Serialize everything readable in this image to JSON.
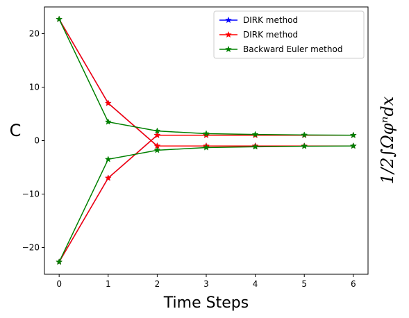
{
  "chart_data": {
    "type": "line",
    "x": [
      0,
      1,
      2,
      3,
      4,
      5,
      6
    ],
    "xlabel": "Time Steps",
    "ylabel": "C",
    "ylabel_right": "1/2∫Ωφⁿdx",
    "xlim": [
      -0.3,
      6.3
    ],
    "ylim": [
      -25,
      25
    ],
    "xticks": [
      0,
      1,
      2,
      3,
      4,
      5,
      6
    ],
    "yticks": [
      -20,
      -10,
      0,
      10,
      20
    ],
    "xtick_labels": [
      "0",
      "1",
      "2",
      "3",
      "4",
      "5",
      "6"
    ],
    "ytick_labels": [
      "−20",
      "−10",
      "0",
      "10",
      "20"
    ],
    "grid": false,
    "legend_position": "top-right",
    "marker": "star",
    "series": [
      {
        "name": "DIRK method",
        "color": "#0000ff",
        "group": "upper",
        "values": [
          22.7,
          7.0,
          -1.0,
          -1.0,
          -1.0,
          -1.0,
          -1.0
        ]
      },
      {
        "name": "DIRK method",
        "color": "#0000ff",
        "group": "lower",
        "values": [
          -22.7,
          -7.0,
          1.0,
          1.0,
          1.0,
          1.0,
          1.0
        ]
      },
      {
        "name": "DIRK method",
        "color": "#ff0000",
        "group": "upper",
        "values": [
          22.7,
          7.0,
          -1.0,
          -1.0,
          -1.0,
          -1.0,
          -1.0
        ]
      },
      {
        "name": "DIRK method",
        "color": "#ff0000",
        "group": "lower",
        "values": [
          -22.7,
          -7.0,
          1.0,
          1.0,
          1.0,
          1.0,
          1.0
        ]
      },
      {
        "name": "Backward Euler method",
        "color": "#008000",
        "group": "upper",
        "values": [
          22.7,
          3.5,
          1.8,
          1.3,
          1.15,
          1.05,
          1.0
        ]
      },
      {
        "name": "Backward Euler method",
        "color": "#008000",
        "group": "lower",
        "values": [
          -22.7,
          -3.5,
          -1.8,
          -1.3,
          -1.15,
          -1.05,
          -1.0
        ]
      }
    ],
    "legend": [
      {
        "label": "DIRK method",
        "color": "#0000ff"
      },
      {
        "label": "DIRK method",
        "color": "#ff0000"
      },
      {
        "label": "Backward Euler method",
        "color": "#008000"
      }
    ]
  }
}
